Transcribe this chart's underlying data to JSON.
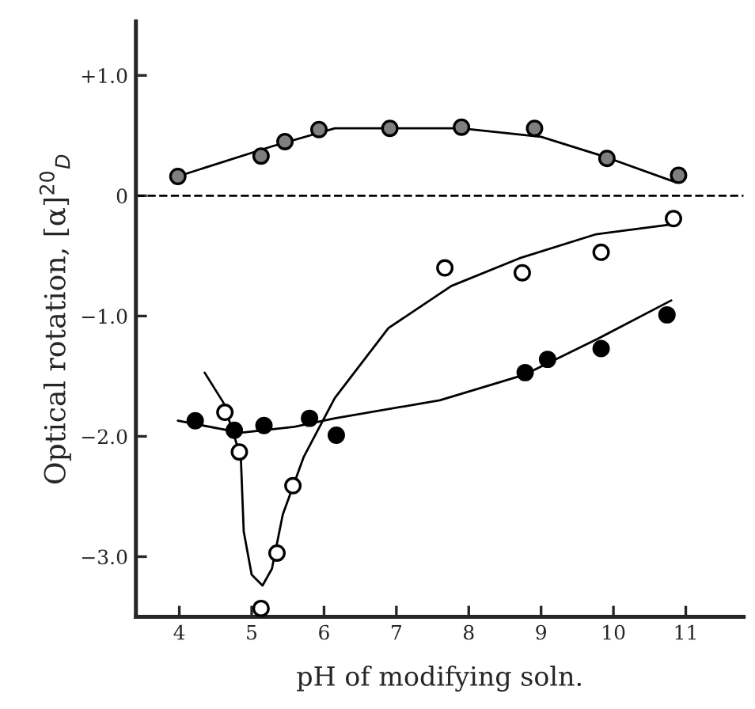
{
  "chart_data": {
    "type": "scatter",
    "xlabel": "pH of modifying soln.",
    "ylabel": "Optical rotation, [α]$^{20}$$_{D}$",
    "xlim": [
      3.4,
      11.8
    ],
    "ylim": [
      -3.5,
      1.45
    ],
    "xticks": [
      4,
      5,
      6,
      7,
      8,
      9,
      10,
      11
    ],
    "yticks": [
      {
        "value": 1.0,
        "label": "+1.0"
      },
      {
        "value": 0,
        "label": "0"
      },
      {
        "value": -1.0,
        "label": "−1.0"
      },
      {
        "value": -2.0,
        "label": "−2.0"
      },
      {
        "value": -3.0,
        "label": "−3.0"
      }
    ],
    "grid": false,
    "marker": "circle",
    "ref_lines": [
      {
        "axis": "y",
        "value": 0,
        "color": "#000000",
        "line_style": "dashed"
      }
    ],
    "series": [
      {
        "color": "#7f7f7f",
        "x": [
          3.98,
          5.13,
          5.46,
          5.93,
          6.91,
          7.9,
          8.91,
          9.91,
          10.9
        ],
        "values": [
          0.16,
          0.33,
          0.45,
          0.55,
          0.56,
          0.57,
          0.56,
          0.31,
          0.17
        ]
      },
      {
        "color": "#000000",
        "x": [
          4.22,
          4.76,
          5.17,
          5.8,
          6.17,
          8.78,
          9.09,
          9.83,
          10.74
        ],
        "values": [
          -1.87,
          -1.95,
          -1.91,
          -1.85,
          -1.99,
          -1.47,
          -1.36,
          -1.27,
          -0.99
        ]
      },
      {
        "color": "#ffffff",
        "x": [
          4.63,
          4.83,
          5.13,
          5.35,
          5.57,
          7.67,
          8.74,
          9.83,
          10.83
        ],
        "values": [
          -1.8,
          -2.13,
          -3.43,
          -2.97,
          -2.41,
          -0.6,
          -0.64,
          -0.47,
          -0.19
        ]
      },
      {
        "type": "line",
        "color": "#000000",
        "marker": "none",
        "x": [
          3.98,
          4.13,
          5.28,
          6.15,
          7.89,
          9.0,
          9.9,
          10.87
        ],
        "values": [
          0.16,
          0.19,
          0.41,
          0.56,
          0.56,
          0.49,
          0.32,
          0.11
        ]
      },
      {
        "type": "line",
        "color": "#000000",
        "marker": "none",
        "x": [
          3.98,
          4.85,
          5.59,
          6.15,
          7.6,
          8.76,
          9.78,
          10.8
        ],
        "values": [
          -1.87,
          -1.97,
          -1.92,
          -1.85,
          -1.7,
          -1.49,
          -1.19,
          -0.87
        ]
      },
      {
        "type": "line",
        "color": "#000000",
        "marker": "none",
        "x": [
          4.35,
          4.61,
          4.85,
          4.89,
          5.0,
          5.15,
          5.28,
          5.43,
          5.72,
          6.15,
          6.89,
          7.76,
          8.7,
          9.76,
          10.78
        ],
        "values": [
          -1.47,
          -1.72,
          -2.17,
          -2.79,
          -3.15,
          -3.24,
          -3.1,
          -2.65,
          -2.17,
          -1.68,
          -1.1,
          -0.75,
          -0.52,
          -0.32,
          -0.24
        ]
      }
    ]
  }
}
